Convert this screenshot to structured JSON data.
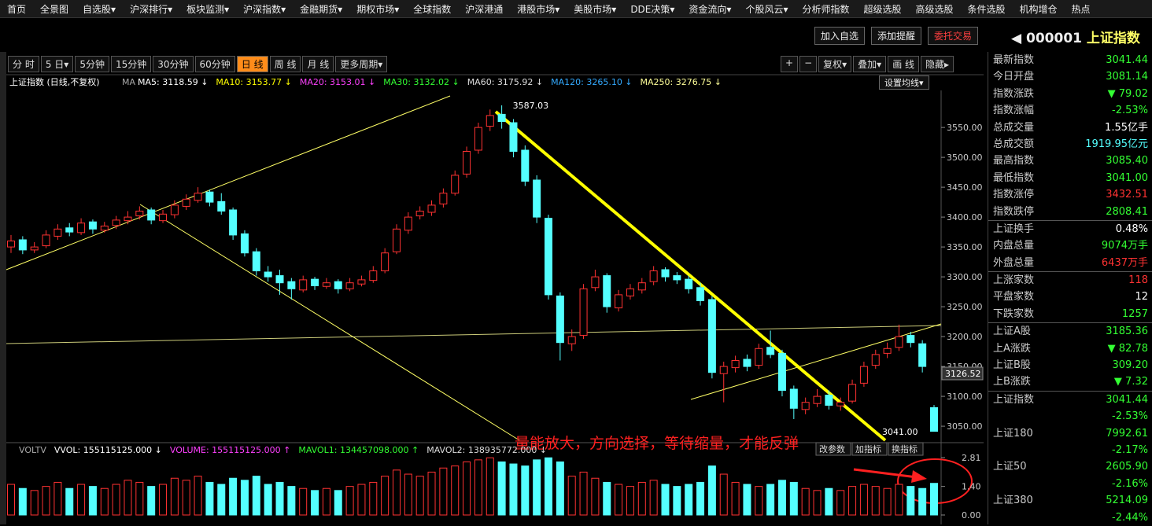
{
  "menu": [
    "首页",
    "全景图",
    "自选股▾",
    "沪深排行▾",
    "板块监测▾",
    "沪深指数▾",
    "金融期货▾",
    "期权市场▾",
    "全球指数",
    "沪深港通",
    "港股市场▾",
    "美股市场▾",
    "DDE决策▾",
    "资金流向▾",
    "个股风云▾",
    "分析师指数",
    "超级选股",
    "高级选股",
    "条件选股",
    "机构增仓",
    "热点"
  ],
  "top_buttons": [
    "加入自选",
    "添加提醒",
    "委托交易"
  ],
  "stock": {
    "code": "000001",
    "name": "上证指数"
  },
  "periods": [
    "分 时",
    "5 日▾",
    "5分钟",
    "15分钟",
    "30分钟",
    "60分钟",
    "日 线",
    "周 线",
    "月 线",
    "更多周期▾"
  ],
  "active_period": 6,
  "tools": [
    "+",
    "−",
    "复权▾",
    "叠加▾",
    "画 线",
    "隐藏▸"
  ],
  "ma_settings": "设置均线▾",
  "chart_data": {
    "type": "candlestick",
    "title": "上证指数 (日线,不复权)",
    "ma_tag": "MA",
    "ma_legend": [
      {
        "name": "MA5: 3118.59 ↓",
        "color": "#ffffff"
      },
      {
        "name": "MA10: 3153.77 ↓",
        "color": "#ffff00"
      },
      {
        "name": "MA20: 3153.01 ↓",
        "color": "#ff40ff"
      },
      {
        "name": "MA30: 3132.02 ↓",
        "color": "#33ff33"
      },
      {
        "name": "MA60: 3175.92 ↓",
        "color": "#dddddd"
      },
      {
        "name": "MA120: 3265.10 ↓",
        "color": "#33aaff"
      },
      {
        "name": "MA250: 3276.75 ↓",
        "color": "#ffff99"
      }
    ],
    "candles": [
      [
        3350,
        3370,
        3340,
        3360
      ],
      [
        3362,
        3368,
        3338,
        3345
      ],
      [
        3345,
        3358,
        3340,
        3350
      ],
      [
        3352,
        3378,
        3348,
        3370
      ],
      [
        3368,
        3388,
        3362,
        3380
      ],
      [
        3382,
        3390,
        3368,
        3375
      ],
      [
        3374,
        3398,
        3370,
        3390
      ],
      [
        3392,
        3396,
        3372,
        3380
      ],
      [
        3378,
        3392,
        3374,
        3385
      ],
      [
        3386,
        3402,
        3380,
        3395
      ],
      [
        3394,
        3410,
        3388,
        3400
      ],
      [
        3402,
        3418,
        3396,
        3410
      ],
      [
        3412,
        3416,
        3388,
        3395
      ],
      [
        3394,
        3412,
        3390,
        3405
      ],
      [
        3404,
        3428,
        3398,
        3420
      ],
      [
        3418,
        3438,
        3412,
        3430
      ],
      [
        3428,
        3450,
        3424,
        3440
      ],
      [
        3442,
        3446,
        3418,
        3425
      ],
      [
        3426,
        3440,
        3404,
        3410
      ],
      [
        3412,
        3416,
        3362,
        3370
      ],
      [
        3372,
        3378,
        3334,
        3340
      ],
      [
        3342,
        3348,
        3302,
        3310
      ],
      [
        3308,
        3318,
        3292,
        3300
      ],
      [
        3302,
        3312,
        3270,
        3290
      ],
      [
        3292,
        3298,
        3262,
        3280
      ],
      [
        3278,
        3302,
        3274,
        3295
      ],
      [
        3296,
        3300,
        3278,
        3285
      ],
      [
        3284,
        3298,
        3280,
        3290
      ],
      [
        3292,
        3296,
        3272,
        3280
      ],
      [
        3280,
        3298,
        3276,
        3290
      ],
      [
        3288,
        3302,
        3284,
        3295
      ],
      [
        3294,
        3318,
        3290,
        3310
      ],
      [
        3310,
        3348,
        3306,
        3340
      ],
      [
        3342,
        3388,
        3338,
        3380
      ],
      [
        3378,
        3408,
        3372,
        3400
      ],
      [
        3402,
        3418,
        3396,
        3410
      ],
      [
        3408,
        3428,
        3402,
        3420
      ],
      [
        3422,
        3448,
        3416,
        3440
      ],
      [
        3440,
        3478,
        3436,
        3470
      ],
      [
        3472,
        3518,
        3466,
        3510
      ],
      [
        3512,
        3558,
        3506,
        3550
      ],
      [
        3552,
        3580,
        3544,
        3570
      ],
      [
        3572,
        3587.03,
        3548,
        3560
      ],
      [
        3558,
        3564,
        3500,
        3510
      ],
      [
        3512,
        3520,
        3452,
        3460
      ],
      [
        3462,
        3470,
        3390,
        3400
      ],
      [
        3398,
        3404,
        3262,
        3270
      ],
      [
        3268,
        3274,
        3160,
        3190
      ],
      [
        3188,
        3212,
        3176,
        3200
      ],
      [
        3202,
        3288,
        3196,
        3280
      ],
      [
        3282,
        3312,
        3276,
        3300
      ],
      [
        3302,
        3306,
        3240,
        3250
      ],
      [
        3248,
        3278,
        3242,
        3270
      ],
      [
        3268,
        3288,
        3262,
        3280
      ],
      [
        3278,
        3298,
        3272,
        3290
      ],
      [
        3292,
        3318,
        3286,
        3310
      ],
      [
        3312,
        3316,
        3292,
        3300
      ],
      [
        3302,
        3308,
        3288,
        3295
      ],
      [
        3296,
        3302,
        3272,
        3280
      ],
      [
        3282,
        3290,
        3252,
        3260
      ],
      [
        3262,
        3268,
        3130,
        3140
      ],
      [
        3138,
        3158,
        3090,
        3150
      ],
      [
        3148,
        3168,
        3140,
        3160
      ],
      [
        3162,
        3170,
        3142,
        3150
      ],
      [
        3152,
        3188,
        3146,
        3180
      ],
      [
        3182,
        3210,
        3164,
        3170
      ],
      [
        3172,
        3178,
        3100,
        3110
      ],
      [
        3112,
        3118,
        3062,
        3080
      ],
      [
        3078,
        3098,
        3070,
        3090
      ],
      [
        3088,
        3112,
        3082,
        3100
      ],
      [
        3102,
        3110,
        3078,
        3085
      ],
      [
        3084,
        3098,
        3076,
        3090
      ],
      [
        3092,
        3128,
        3088,
        3120
      ],
      [
        3122,
        3158,
        3116,
        3150
      ],
      [
        3152,
        3178,
        3146,
        3170
      ],
      [
        3172,
        3190,
        3164,
        3180
      ],
      [
        3182,
        3220,
        3176,
        3200
      ],
      [
        3202,
        3208,
        3182,
        3190
      ],
      [
        3188,
        3194,
        3140,
        3150
      ],
      [
        3081.14,
        3085.4,
        3041,
        3041.44
      ]
    ],
    "ylim": [
      3033,
      3612
    ],
    "yticks": [
      {
        "value": 3050,
        "label": "3050.00"
      },
      {
        "value": 3100,
        "label": "3100.00"
      },
      {
        "value": 3150,
        "label": "3150.00"
      },
      {
        "value": 3200,
        "label": "3200.00"
      },
      {
        "value": 3250,
        "label": "3250.00"
      },
      {
        "value": 3300,
        "label": "3300.00"
      },
      {
        "value": 3350,
        "label": "3350.00"
      },
      {
        "value": 3400,
        "label": "3400.00"
      },
      {
        "value": 3450,
        "label": "3450.00"
      },
      {
        "value": 3500,
        "label": "3500.00"
      },
      {
        "value": 3550,
        "label": "3550.00"
      }
    ],
    "up_color": "#ff3232",
    "down_color": "#54ffff",
    "peak_label": 3587.03,
    "low_label": "3041.00",
    "cursor_label": "3126.52",
    "annotation": "量能放大，方向选择，等待缩量，才能反弹",
    "volume": {
      "legend": [
        {
          "name": "VOLTV",
          "color": "#aaaaaa"
        },
        {
          "name": "VVOL: 155115125.000 ↓",
          "color": "#ffffff"
        },
        {
          "name": "VOLUME: 155115125.000 ↑",
          "color": "#ff40ff"
        },
        {
          "name": "MAVOL1: 134457098.000 ↑",
          "color": "#33ff33"
        },
        {
          "name": "MAVOL2: 138935772.000 ↓",
          "color": "#dddddd"
        }
      ],
      "values": [
        1.5,
        1.3,
        1.2,
        1.4,
        1.6,
        1.3,
        1.5,
        1.4,
        1.3,
        1.5,
        1.7,
        1.6,
        1.4,
        1.5,
        1.8,
        1.7,
        1.9,
        1.6,
        1.5,
        1.8,
        1.7,
        1.9,
        1.5,
        1.6,
        1.4,
        1.3,
        1.2,
        1.3,
        1.2,
        1.4,
        1.5,
        1.6,
        1.9,
        2.2,
        2.0,
        1.9,
        2.1,
        2.3,
        2.4,
        2.6,
        2.7,
        2.8,
        2.6,
        2.5,
        2.4,
        2.7,
        2.8,
        2.6,
        1.9,
        2.1,
        1.8,
        1.6,
        1.5,
        1.4,
        1.6,
        1.7,
        1.5,
        1.4,
        1.5,
        1.6,
        2.4,
        2.0,
        1.6,
        1.5,
        1.4,
        1.5,
        1.7,
        1.6,
        1.3,
        1.2,
        1.3,
        1.2,
        1.4,
        1.5,
        1.4,
        1.3,
        1.5,
        1.4,
        1.3,
        1.55
      ],
      "ylim": [
        0,
        2.81
      ],
      "yticks": [
        2.81,
        {
          "value": 1.4,
          "label": "1.40"
        },
        {
          "value": 0,
          "label": "0.00"
        }
      ],
      "buttons": [
        "改参数",
        "加指标",
        "换指标"
      ]
    }
  },
  "quote_panel": {
    "groups": [
      [
        {
          "label": "最新指数",
          "value": "3041.44",
          "color": "#33ff33"
        },
        {
          "label": "今日开盘",
          "value": "3081.14",
          "color": "#33ff33"
        },
        {
          "label": "指数涨跌",
          "value": "▼ 79.02",
          "color": "#33ff33"
        },
        {
          "label": "指数涨幅",
          "value": "-2.53%",
          "color": "#33ff33"
        },
        {
          "label": "总成交量",
          "value": "1.55亿手",
          "color": "#ffffff"
        },
        {
          "label": "总成交额",
          "value": "1919.95亿元",
          "color": "#54ffff"
        },
        {
          "label": "最高指数",
          "value": "3085.40",
          "color": "#33ff33"
        },
        {
          "label": "最低指数",
          "value": "3041.00",
          "color": "#33ff33"
        },
        {
          "label": "指数涨停",
          "value": "3432.51",
          "color": "#ff3232"
        },
        {
          "label": "指数跌停",
          "value": "2808.41",
          "color": "#33ff33"
        }
      ],
      [
        {
          "label": "上证换手",
          "value": "0.48%",
          "color": "#ffffff"
        },
        {
          "label": "内盘总量",
          "value": "9074万手",
          "color": "#33ff33"
        },
        {
          "label": "外盘总量",
          "value": "6437万手",
          "color": "#ff3232"
        }
      ],
      [
        {
          "label": "上涨家数",
          "value": "118",
          "color": "#ff3232"
        },
        {
          "label": "平盘家数",
          "value": "12",
          "color": "#ffffff"
        },
        {
          "label": "下跌家数",
          "value": "1257",
          "color": "#33ff33"
        }
      ],
      [
        {
          "label": "上证A股",
          "value": "3185.36",
          "color": "#33ff33"
        },
        {
          "label": "上A涨跌",
          "value": "▼ 82.78",
          "color": "#33ff33"
        },
        {
          "label": "上证B股",
          "value": "309.20",
          "color": "#33ff33"
        },
        {
          "label": "上B涨跌",
          "value": "▼ 7.32",
          "color": "#33ff33"
        }
      ]
    ],
    "indices": [
      {
        "name": "上证指数",
        "value": "3041.44",
        "change": "-2.53%"
      },
      {
        "name": "上证180",
        "value": "7992.61",
        "change": "-2.17%"
      },
      {
        "name": "上证50",
        "value": "2605.90",
        "change": "-2.16%"
      },
      {
        "name": "上证380",
        "value": "5214.09",
        "change": "-2.44%"
      }
    ],
    "index_color": "#33ff33"
  }
}
